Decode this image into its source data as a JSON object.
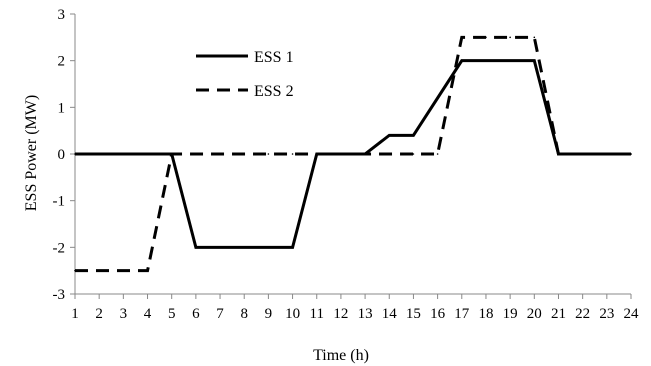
{
  "chart_data": {
    "type": "line",
    "title": "",
    "xlabel": "Time (h)",
    "ylabel": "ESS Power (MW)",
    "x": [
      1,
      2,
      3,
      4,
      5,
      6,
      7,
      8,
      9,
      10,
      11,
      12,
      13,
      14,
      15,
      16,
      17,
      18,
      19,
      20,
      21,
      22,
      23,
      24
    ],
    "xlim": [
      1,
      24
    ],
    "ylim": [
      -3,
      3
    ],
    "yticks": [
      -3,
      -2,
      -1,
      0,
      1,
      2,
      3
    ],
    "grid": false,
    "legend_position": "top-left",
    "series": [
      {
        "name": "ESS 1",
        "style": "solid",
        "color": "#000000",
        "values": [
          0,
          0,
          0,
          0,
          0,
          -2,
          -2,
          -2,
          -2,
          -2,
          0,
          0,
          0,
          0.4,
          0.4,
          1.2,
          2,
          2,
          2,
          2,
          0,
          0,
          0,
          0
        ]
      },
      {
        "name": "ESS 2",
        "style": "dashed",
        "color": "#000000",
        "values": [
          -2.5,
          -2.5,
          -2.5,
          -2.5,
          0,
          0,
          0,
          0,
          0,
          0,
          0,
          0,
          0,
          0,
          0,
          0,
          2.5,
          2.5,
          2.5,
          2.5,
          0,
          0,
          0,
          0
        ]
      }
    ]
  }
}
